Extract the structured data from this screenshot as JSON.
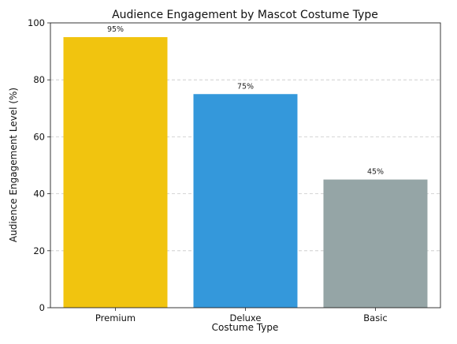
{
  "chart_data": {
    "type": "bar",
    "title": "Audience Engagement by Mascot Costume Type",
    "xlabel": "Costume Type",
    "ylabel": "Audience Engagement Level (%)",
    "categories": [
      "Premium",
      "Deluxe",
      "Basic"
    ],
    "values": [
      95,
      75,
      45
    ],
    "data_labels": [
      "95%",
      "75%",
      "45%"
    ],
    "colors": [
      "#f1c40f",
      "#3498db",
      "#95a5a6"
    ],
    "ylim": [
      0,
      100
    ],
    "yticks": [
      0,
      20,
      40,
      60,
      80,
      100
    ],
    "grid": true,
    "legend": "none"
  }
}
